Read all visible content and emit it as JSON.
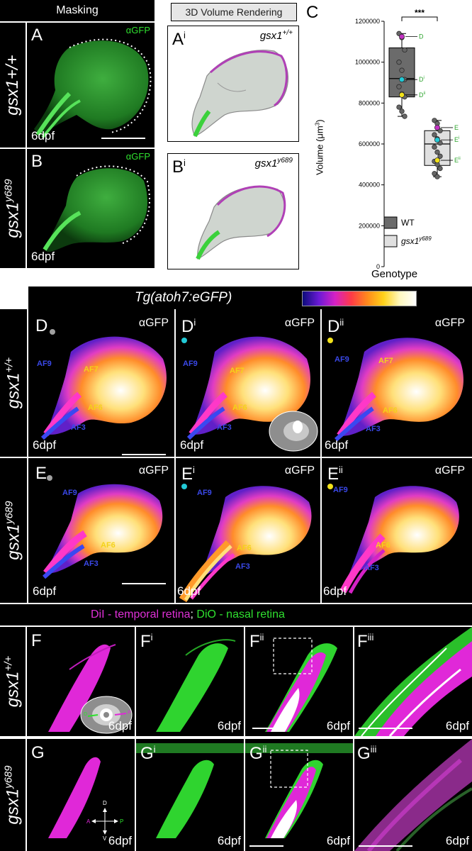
{
  "top": {
    "masking_header": "Masking",
    "volume_header": "3D Volume Rendering",
    "row_label_wt": "gsx1+/+",
    "row_label_mut_base": "gsx1",
    "row_label_mut_sup": "y689",
    "panel_A": "A",
    "panel_B": "B",
    "panel_Ai_base": "A",
    "panel_Ai_sup": "i",
    "panel_Bi_base": "B",
    "panel_Bi_sup": "i",
    "agfp": "αGFP",
    "dpf": "6dpf",
    "geno_wt_base": "gsx1",
    "geno_wt_sup": "+/+",
    "geno_mut_base": "gsx1",
    "geno_mut_sup": "y689"
  },
  "panel_D_E": {
    "header": "Tg(atoh7:eGFP)",
    "row_label_wt_base": "gsx1",
    "row_label_wt_sup": "+/+",
    "row_label_mut_base": "gsx1",
    "row_label_mut_sup": "y689",
    "D": "D",
    "Di_base": "D",
    "Di_sup": "i",
    "Dii_base": "D",
    "Dii_sup": "ii",
    "E": "E",
    "Ei_base": "E",
    "Ei_sup": "i",
    "Eii_base": "E",
    "Eii_sup": "ii",
    "agfp": "αGFP",
    "dpf": "6dpf",
    "af9": "AF9",
    "af7": "AF7",
    "af6": "AF6",
    "af3": "AF3"
  },
  "panel_F_G": {
    "header_dil": "DiI - temporal retina",
    "header_sep": ";",
    "header_dio": " DiO - nasal retina",
    "row_label_wt_base": "gsx1",
    "row_label_wt_sup": "+/+",
    "row_label_mut_base": "gsx1",
    "row_label_mut_sup": "y689",
    "F": "F",
    "Fi_base": "F",
    "Fi_sup": "i",
    "Fii_base": "F",
    "Fii_sup": "ii",
    "Fiii_base": "F",
    "Fiii_sup": "iii",
    "G": "G",
    "Gi_base": "G",
    "Gi_sup": "i",
    "Gii_base": "G",
    "Gii_sup": "ii",
    "Giii_base": "G",
    "Giii_sup": "iii",
    "dpf": "6dpf",
    "axis_d": "D",
    "axis_v": "V",
    "axis_a": "A",
    "axis_p": "P",
    "eye_d": "D",
    "eye_p": "P"
  },
  "chart_data": {
    "type": "box",
    "panel_label": "C",
    "title": "",
    "xlabel": "Genotype",
    "ylabel_base": "Volume (μm",
    "ylabel_sup": "3",
    "ylabel_end": ")",
    "ylim": [
      0,
      1200000
    ],
    "yticks": [
      0,
      200000,
      400000,
      600000,
      800000,
      1000000,
      1200000
    ],
    "significance": "***",
    "legend": [
      {
        "name": "WT",
        "name_sup": "",
        "color": "#6b6b6b"
      },
      {
        "name": "gsx1",
        "name_sup": "y689",
        "color": "#e0e0e0"
      }
    ],
    "series": [
      {
        "name": "WT",
        "color": "#6b6b6b",
        "whisker_low": 735000,
        "q1": 830000,
        "median": 920000,
        "q3": 1070000,
        "whisker_high": 1140000,
        "points": [
          1140000,
          1120000,
          1060000,
          1000000,
          960000,
          915000,
          880000,
          845000,
          830000,
          780000,
          760000,
          735000
        ],
        "highlighted": [
          {
            "value": 1125000,
            "color": "#c232c2",
            "label_base": "D",
            "label_sup": ""
          },
          {
            "value": 915000,
            "color": "#22c9d6",
            "label_base": "D",
            "label_sup": "i"
          },
          {
            "value": 840000,
            "color": "#f2e21a",
            "label_base": "D",
            "label_sup": "ii"
          }
        ]
      },
      {
        "name": "gsx1 y689",
        "color": "#e0e0e0",
        "whisker_low": 440000,
        "q1": 495000,
        "median": 600000,
        "q3": 665000,
        "whisker_high": 715000,
        "points": [
          715000,
          700000,
          665000,
          645000,
          625000,
          605000,
          585000,
          560000,
          540000,
          515000,
          500000,
          480000,
          455000,
          440000
        ],
        "highlighted": [
          {
            "value": 680000,
            "color": "#c232c2",
            "label_base": "E",
            "label_sup": ""
          },
          {
            "value": 620000,
            "color": "#22c9d6",
            "label_base": "E",
            "label_sup": "i"
          },
          {
            "value": 520000,
            "color": "#f2e21a",
            "label_base": "E",
            "label_sup": "ii"
          }
        ]
      }
    ]
  }
}
